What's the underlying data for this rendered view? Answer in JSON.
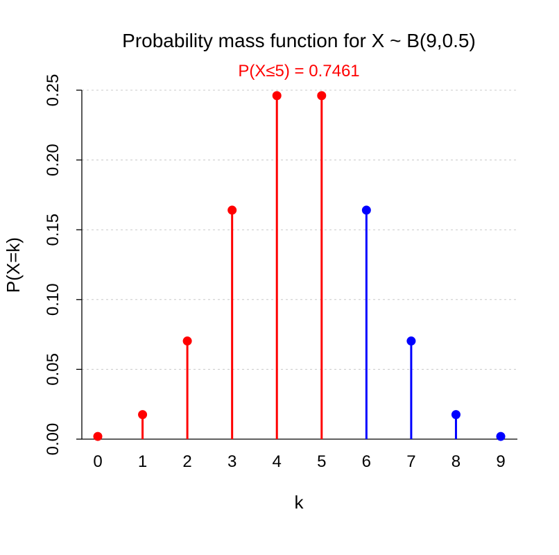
{
  "chart_data": {
    "type": "stem",
    "title": "Probability mass function for X ~ B(9,0.5)",
    "subtitle": "P(X≤5)  =  0.7461",
    "xlabel": "k",
    "ylabel": "P(X=k)",
    "x": [
      0,
      1,
      2,
      3,
      4,
      5,
      6,
      7,
      8,
      9
    ],
    "values": [
      0.00195,
      0.01758,
      0.07031,
      0.16406,
      0.24609,
      0.24609,
      0.16406,
      0.07031,
      0.01758,
      0.00195
    ],
    "xlim": [
      0,
      9
    ],
    "ylim": [
      0,
      0.25
    ],
    "x_ticks": [
      "0",
      "1",
      "2",
      "3",
      "4",
      "5",
      "6",
      "7",
      "8",
      "9"
    ],
    "y_ticks": [
      "0.00",
      "0.05",
      "0.10",
      "0.15",
      "0.20",
      "0.25"
    ],
    "y_tick_values": [
      0,
      0.05,
      0.1,
      0.15,
      0.2,
      0.25
    ],
    "grid": "horizontal dotted",
    "highlight_max_k": 5,
    "colors": {
      "highlight": "#ff0000",
      "normal": "#0000ff",
      "subtitle": "#ff0000",
      "grid": "#c8c8c8",
      "axis": "#000000"
    }
  }
}
